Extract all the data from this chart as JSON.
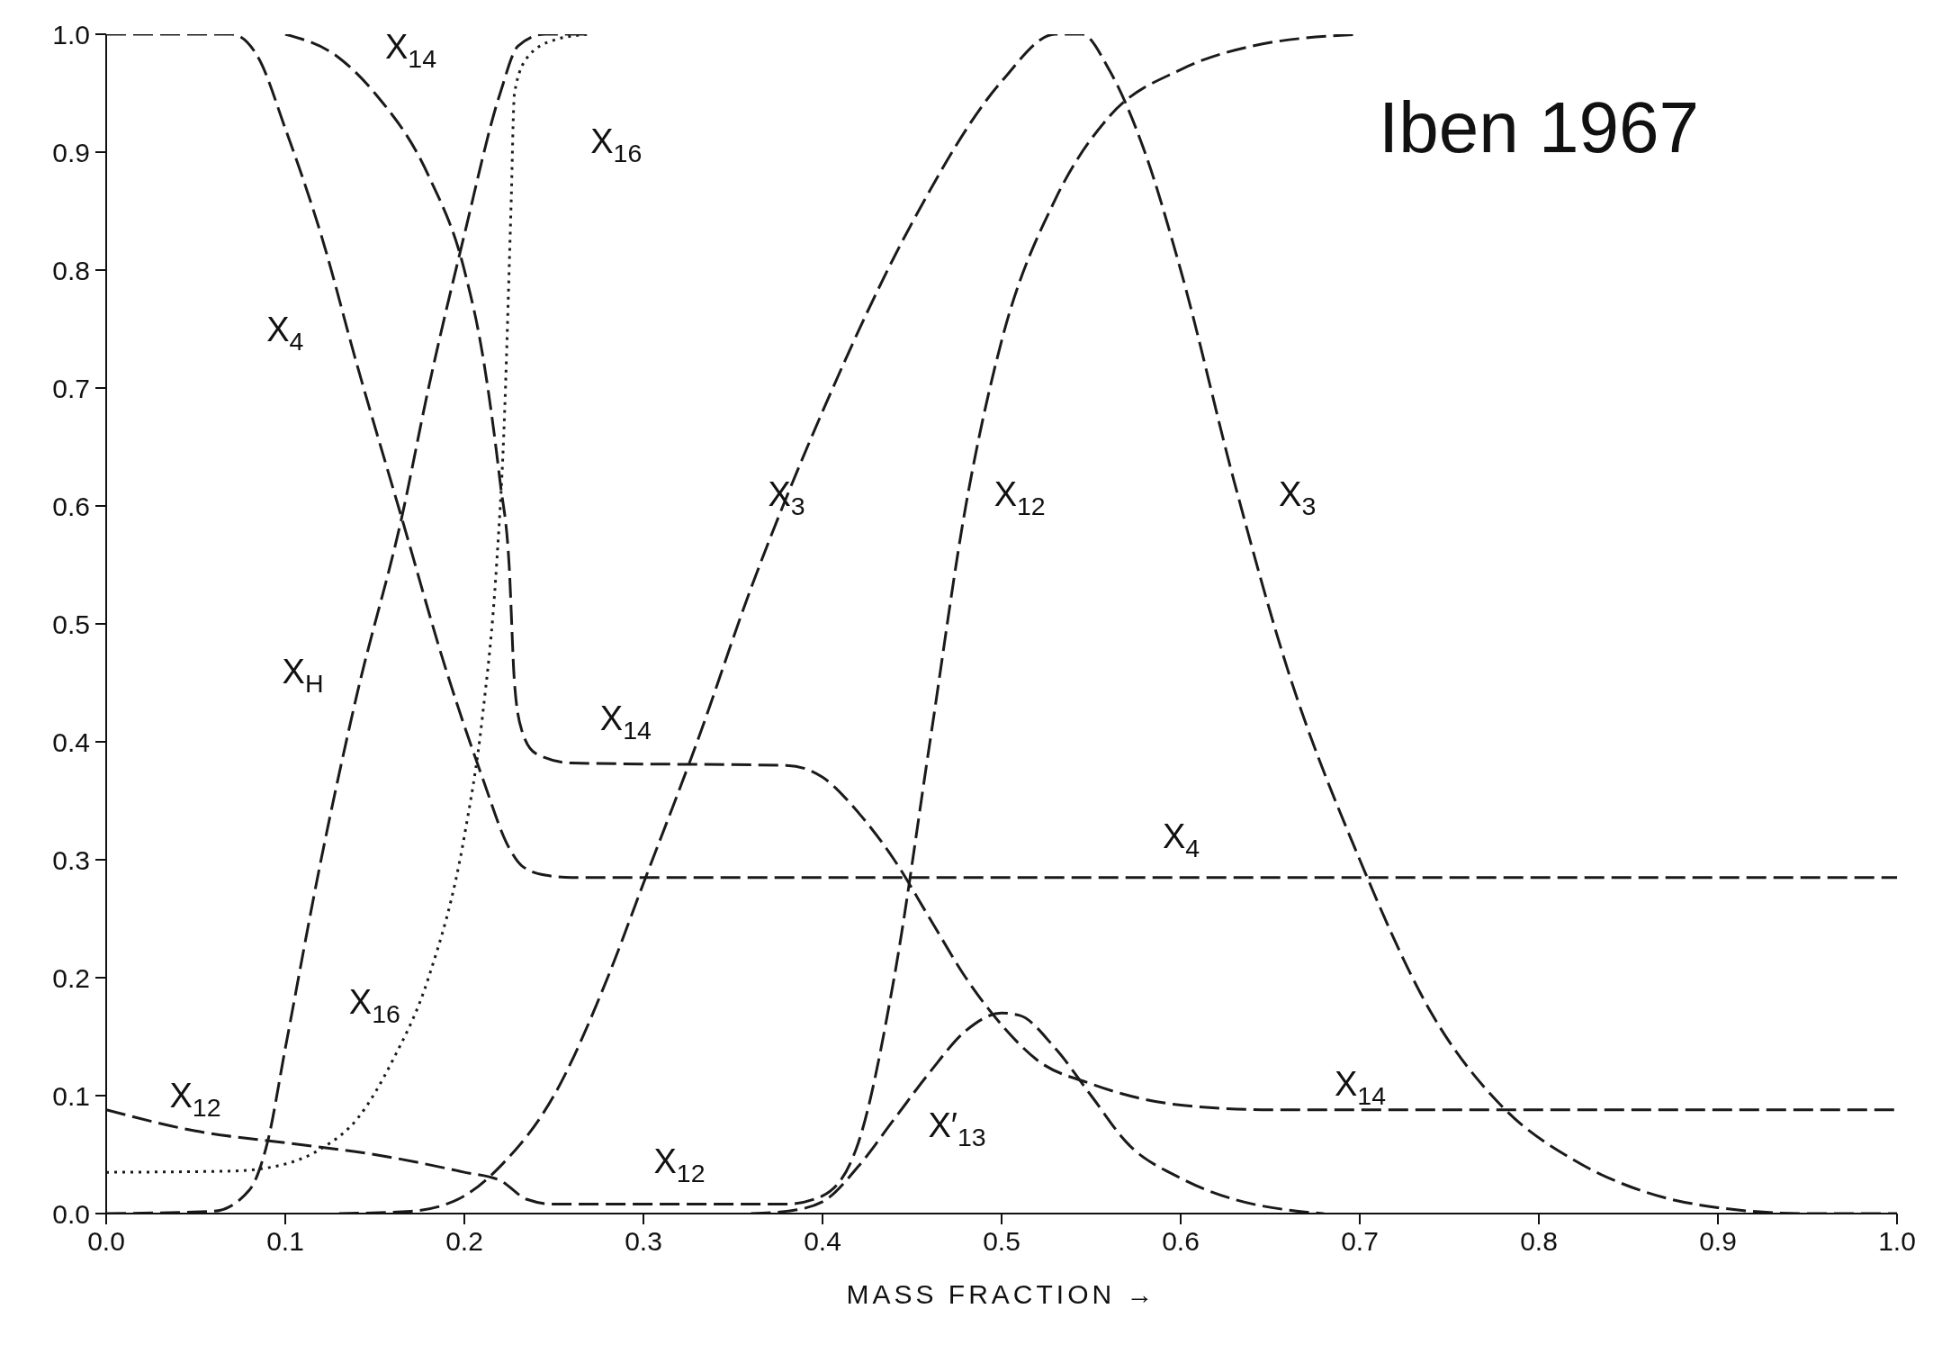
{
  "chart_data": {
    "type": "line",
    "xlabel": "MASS FRACTION →",
    "xlim": [
      0,
      1
    ],
    "xticks": [
      {
        "value": 0,
        "label": "0.0"
      },
      {
        "value": 0.1,
        "label": "0.1"
      },
      {
        "value": 0.2,
        "label": "0.2"
      },
      {
        "value": 0.3,
        "label": "0.3"
      },
      {
        "value": 0.4,
        "label": "0.4"
      },
      {
        "value": 0.5,
        "label": "0.5"
      },
      {
        "value": 0.6,
        "label": "0.6"
      },
      {
        "value": 0.7,
        "label": "0.7"
      },
      {
        "value": 0.8,
        "label": "0.8"
      },
      {
        "value": 0.9,
        "label": "0.9"
      },
      {
        "value": 1,
        "label": "1.0"
      }
    ],
    "ylim": [
      0,
      1
    ],
    "yticks": [
      {
        "value": 0,
        "label": "0.0"
      },
      {
        "value": 0.1,
        "label": "0.1"
      },
      {
        "value": 0.2,
        "label": "0.2"
      },
      {
        "value": 0.3,
        "label": "0.3"
      },
      {
        "value": 0.4,
        "label": "0.4"
      },
      {
        "value": 0.5,
        "label": "0.5"
      },
      {
        "value": 0.6,
        "label": "0.6"
      },
      {
        "value": 0.7,
        "label": "0.7"
      },
      {
        "value": 0.8,
        "label": "0.8"
      },
      {
        "value": 0.9,
        "label": "0.9"
      },
      {
        "value": 1,
        "label": "1.0"
      }
    ],
    "grid": false,
    "legend": false,
    "marker": "none",
    "series": [
      {
        "color": "#1a1a1a",
        "line_style": "dashed",
        "x": [
          0,
          0.06,
          0.08,
          0.09,
          0.1,
          0.12,
          0.14,
          0.165,
          0.18,
          0.2,
          0.22,
          0.23,
          0.245,
          0.27
        ],
        "values": [
          0,
          0.002,
          0.02,
          0.06,
          0.14,
          0.3,
          0.44,
          0.59,
          0.7,
          0.83,
          0.95,
          0.99,
          1.0,
          1.0
        ]
      },
      {
        "color": "#1a1a1a",
        "line_style": "dashed",
        "x": [
          0.1,
          0.13,
          0.15,
          0.18,
          0.2,
          0.21,
          0.22,
          0.225,
          0.228,
          0.232,
          0.24,
          0.26,
          0.38,
          0.4,
          0.42,
          0.44,
          0.46,
          0.48,
          0.5,
          0.52,
          0.55,
          0.6,
          0.65,
          1.0
        ],
        "values": [
          1.0,
          0.98,
          0.95,
          0.88,
          0.8,
          0.73,
          0.62,
          0.55,
          0.45,
          0.41,
          0.39,
          0.382,
          0.38,
          0.37,
          0.34,
          0.3,
          0.25,
          0.2,
          0.16,
          0.13,
          0.11,
          0.092,
          0.088,
          0.088
        ]
      },
      {
        "color": "#1a1a1a",
        "line_style": "dotted",
        "x": [
          0,
          0.07,
          0.1,
          0.12,
          0.14,
          0.16,
          0.18,
          0.2,
          0.21,
          0.218,
          0.222,
          0.226,
          0.228,
          0.235,
          0.25,
          0.27
        ],
        "values": [
          0.035,
          0.036,
          0.042,
          0.055,
          0.08,
          0.13,
          0.2,
          0.32,
          0.42,
          0.55,
          0.66,
          0.85,
          0.95,
          0.98,
          0.995,
          1.0
        ]
      },
      {
        "color": "#1a1a1a",
        "line_style": "dashed",
        "x": [
          0,
          0.07,
          0.085,
          0.1,
          0.12,
          0.14,
          0.165,
          0.19,
          0.21,
          0.225,
          0.232,
          0.245,
          0.26,
          1.0
        ],
        "values": [
          1.0,
          1.0,
          0.98,
          0.92,
          0.83,
          0.72,
          0.59,
          0.46,
          0.37,
          0.31,
          0.295,
          0.287,
          0.285,
          0.285
        ]
      },
      {
        "color": "#1a1a1a",
        "line_style": "dashed",
        "x": [
          0.13,
          0.17,
          0.2,
          0.22,
          0.25,
          0.28,
          0.3,
          0.33,
          0.36,
          0.4,
          0.45,
          0.5,
          0.53,
          0.545,
          0.56,
          0.58,
          0.6,
          0.63,
          0.66,
          0.7,
          0.74,
          0.78,
          0.82,
          0.86,
          0.9,
          0.95,
          1.0
        ],
        "values": [
          0,
          0.002,
          0.015,
          0.04,
          0.1,
          0.2,
          0.28,
          0.4,
          0.53,
          0.68,
          0.84,
          0.96,
          1.0,
          1.0,
          0.97,
          0.9,
          0.8,
          0.62,
          0.46,
          0.3,
          0.17,
          0.09,
          0.045,
          0.018,
          0.005,
          0,
          0
        ]
      },
      {
        "color": "#1a1a1a",
        "line_style": "dashed",
        "x": [
          0,
          0.05,
          0.1,
          0.15,
          0.2,
          0.22,
          0.235,
          0.25,
          0.38,
          0.4,
          0.42,
          0.44,
          0.46,
          0.48,
          0.5,
          0.53,
          0.56,
          0.6,
          0.64,
          0.7
        ],
        "values": [
          0.088,
          0.07,
          0.06,
          0.05,
          0.035,
          0.028,
          0.012,
          0.008,
          0.008,
          0.015,
          0.06,
          0.2,
          0.4,
          0.6,
          0.74,
          0.86,
          0.93,
          0.97,
          0.99,
          1.0
        ]
      },
      {
        "color": "#1a1a1a",
        "line_style": "dashed",
        "x": [
          0.36,
          0.38,
          0.4,
          0.42,
          0.44,
          0.46,
          0.48,
          0.5,
          0.51,
          0.53,
          0.55,
          0.57,
          0.6,
          0.63,
          0.66,
          0.68
        ],
        "values": [
          0,
          0.002,
          0.01,
          0.04,
          0.08,
          0.12,
          0.155,
          0.17,
          0.168,
          0.14,
          0.1,
          0.06,
          0.03,
          0.012,
          0.003,
          0
        ]
      }
    ],
    "annotations": [
      {
        "text": "X$_{14}$",
        "x": 0.15,
        "y": 0.95
      },
      {
        "text": "X$_{16}$",
        "x": 0.228,
        "y": 0.95
      },
      {
        "text": "X$_{4}$",
        "x": 0.12,
        "y": 0.83
      },
      {
        "text": "X$_{H}$",
        "x": 0.14,
        "y": 0.44
      },
      {
        "text": "X$_{14}$",
        "x": 0.26,
        "y": 0.382
      },
      {
        "text": "X$_{16}$",
        "x": 0.16,
        "y": 0.13
      },
      {
        "text": "X$_{12}$",
        "x": 0.1,
        "y": 0.06
      },
      {
        "text": "X$_{12}$",
        "x": 0.3,
        "y": 0.008
      },
      {
        "text": "X$_{3}$",
        "x": 0.4,
        "y": 0.68
      },
      {
        "text": "X$_{12}$",
        "x": 0.48,
        "y": 0.6
      },
      {
        "text": "X$_{3}$",
        "x": 0.63,
        "y": 0.62
      },
      {
        "text": "X$_{4}$",
        "x": 0.55,
        "y": 0.285
      },
      {
        "text": "X$_{14}$",
        "x": 0.65,
        "y": 0.088
      },
      {
        "text": "X′$_{13}$",
        "x": 0.44,
        "y": 0.08
      },
      "Iben 1967"
    ]
  }
}
